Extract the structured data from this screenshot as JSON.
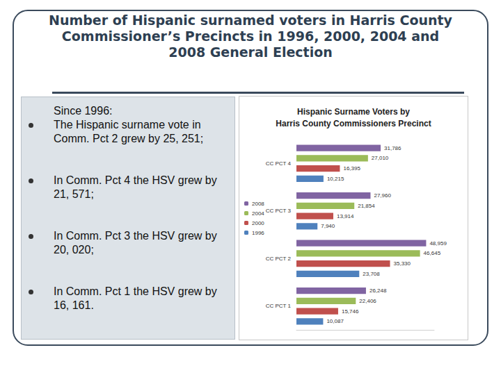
{
  "slide": {
    "title": "Number of Hispanic surnamed voters in Harris County Commissioner’s Precincts in 1996, 2000, 2004 and 2008 General Election",
    "bullets": [
      "Since 1996:\nThe Hispanic surname vote in Comm. Pct 2 grew by 25, 251;",
      "In Comm. Pct 4 the HSV grew by 21, 571;",
      "In Comm. Pct 3 the HSV grew by 20, 020;",
      "In Comm. Pct 1 the HSV grew by 16, 161."
    ]
  },
  "chart_data": {
    "type": "bar",
    "orientation": "horizontal",
    "title": "Hispanic Surname Voters by\nHarris County Commissioners Precinct",
    "categories": [
      "CC PCT 4",
      "CC PCT 3",
      "CC PCT 2",
      "CC PCT 1"
    ],
    "series": [
      {
        "name": "2008",
        "color": "#8064a2",
        "values": [
          31786,
          27960,
          48959,
          26248
        ],
        "value_labels": [
          "31,786",
          "27,960",
          "48,959",
          "26,248"
        ]
      },
      {
        "name": "2004",
        "color": "#9bbb59",
        "values": [
          27010,
          21854,
          46645,
          22406
        ],
        "value_labels": [
          "27,010",
          "21,854",
          "46,645",
          "22,406"
        ]
      },
      {
        "name": "2000",
        "color": "#c0504d",
        "values": [
          16395,
          13914,
          35330,
          15746
        ],
        "value_labels": [
          "16,395",
          "13,914",
          "35,330",
          "15,746"
        ]
      },
      {
        "name": "1996",
        "color": "#4f81bd",
        "values": [
          10215,
          7940,
          23708,
          10087
        ],
        "value_labels": [
          "10,215",
          "7,940",
          "23,708",
          "10,087"
        ]
      }
    ],
    "xlim": [
      0,
      52000
    ],
    "grid": false,
    "legend": "left",
    "data_labels": true,
    "tick_labels": "y"
  }
}
